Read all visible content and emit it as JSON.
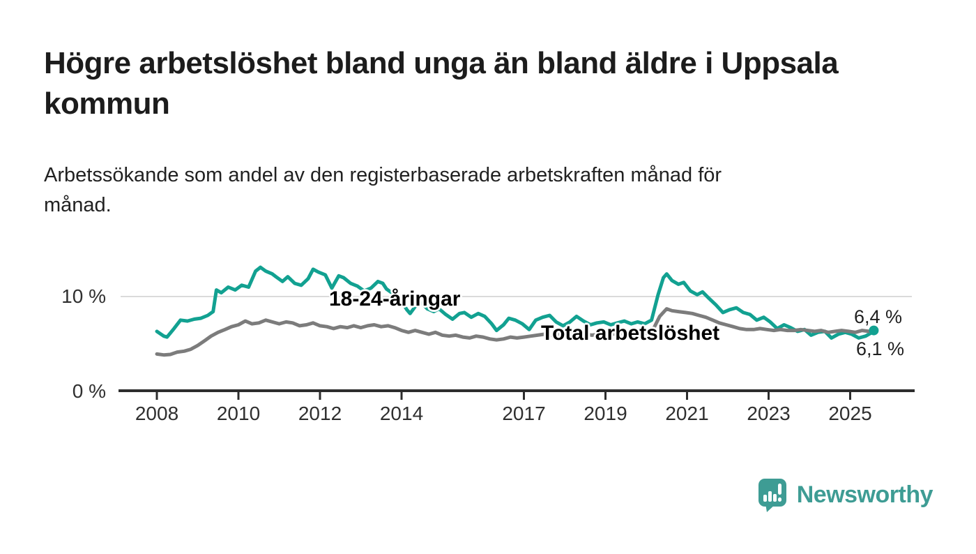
{
  "header": {
    "title_lines": [
      "Högre arbetslöshet bland unga än bland äldre i Uppsala",
      "kommun"
    ],
    "subtitle_lines": [
      "Arbetssökande som andel av den registerbaserade arbetskraften månad för",
      "månad."
    ]
  },
  "footer": {
    "brand": "Newsworthy",
    "brand_color": "#3e9c94"
  },
  "chart_data": {
    "type": "line",
    "title": "Högre arbetslöshet bland unga än bland äldre i Uppsala kommun",
    "subtitle": "Arbetssökande som andel av den registerbaserade arbetskraften månad för månad.",
    "xlabel": "",
    "ylabel": "",
    "x_range": [
      2008,
      2025.7
    ],
    "ylim": [
      0,
      14
    ],
    "grid": "single horizontal gridline at 10 %",
    "axis_color": "#2d2d2d",
    "gridline_color": "#dadada",
    "y_ticks": [
      {
        "value": 10,
        "label": "10 %"
      },
      {
        "value": 0,
        "label": "0 %"
      }
    ],
    "x_ticks": [
      {
        "year": 2008,
        "label": "2008"
      },
      {
        "year": 2010,
        "label": "2010"
      },
      {
        "year": 2012,
        "label": "2012"
      },
      {
        "year": 2014,
        "label": "2014"
      },
      {
        "year": 2017,
        "label": "2017"
      },
      {
        "year": 2019,
        "label": "2019"
      },
      {
        "year": 2021,
        "label": "2021"
      },
      {
        "year": 2023,
        "label": "2023"
      },
      {
        "year": 2025,
        "label": "2025"
      }
    ],
    "series": [
      {
        "name": "18-24-åringar",
        "color": "#12a191",
        "end_label": "6,4 %",
        "end_value": 6.4,
        "end_dot": true,
        "points": [
          [
            2008.0,
            6.3
          ],
          [
            2008.17,
            5.8
          ],
          [
            2008.25,
            5.7
          ],
          [
            2008.42,
            6.6
          ],
          [
            2008.58,
            7.5
          ],
          [
            2008.75,
            7.4
          ],
          [
            2008.92,
            7.6
          ],
          [
            2009.08,
            7.7
          ],
          [
            2009.25,
            8.0
          ],
          [
            2009.38,
            8.4
          ],
          [
            2009.46,
            10.7
          ],
          [
            2009.58,
            10.4
          ],
          [
            2009.75,
            11.0
          ],
          [
            2009.92,
            10.7
          ],
          [
            2010.08,
            11.2
          ],
          [
            2010.25,
            11.0
          ],
          [
            2010.42,
            12.7
          ],
          [
            2010.54,
            13.1
          ],
          [
            2010.67,
            12.7
          ],
          [
            2010.83,
            12.4
          ],
          [
            2010.92,
            12.1
          ],
          [
            2011.08,
            11.6
          ],
          [
            2011.21,
            12.1
          ],
          [
            2011.38,
            11.4
          ],
          [
            2011.54,
            11.2
          ],
          [
            2011.71,
            11.9
          ],
          [
            2011.83,
            12.9
          ],
          [
            2011.96,
            12.6
          ],
          [
            2012.13,
            12.3
          ],
          [
            2012.29,
            10.9
          ],
          [
            2012.46,
            12.2
          ],
          [
            2012.58,
            12.0
          ],
          [
            2012.75,
            11.4
          ],
          [
            2012.92,
            11.1
          ],
          [
            2013.08,
            10.6
          ],
          [
            2013.25,
            10.9
          ],
          [
            2013.42,
            11.6
          ],
          [
            2013.54,
            11.4
          ],
          [
            2013.63,
            10.8
          ],
          [
            2013.79,
            10.3
          ],
          [
            2013.96,
            9.8
          ],
          [
            2014.13,
            8.6
          ],
          [
            2014.21,
            8.2
          ],
          [
            2014.38,
            9.2
          ],
          [
            2014.5,
            9.3
          ],
          [
            2014.63,
            8.7
          ],
          [
            2014.79,
            8.4
          ],
          [
            2014.92,
            8.7
          ],
          [
            2015.08,
            8.1
          ],
          [
            2015.25,
            7.6
          ],
          [
            2015.42,
            8.2
          ],
          [
            2015.54,
            8.3
          ],
          [
            2015.71,
            7.8
          ],
          [
            2015.88,
            8.2
          ],
          [
            2016.04,
            7.9
          ],
          [
            2016.21,
            7.1
          ],
          [
            2016.33,
            6.4
          ],
          [
            2016.5,
            7.0
          ],
          [
            2016.63,
            7.7
          ],
          [
            2016.79,
            7.5
          ],
          [
            2016.96,
            7.1
          ],
          [
            2017.13,
            6.5
          ],
          [
            2017.29,
            7.5
          ],
          [
            2017.46,
            7.8
          ],
          [
            2017.63,
            8.0
          ],
          [
            2017.79,
            7.3
          ],
          [
            2017.96,
            6.9
          ],
          [
            2018.13,
            7.3
          ],
          [
            2018.29,
            7.9
          ],
          [
            2018.46,
            7.4
          ],
          [
            2018.63,
            7.0
          ],
          [
            2018.79,
            7.2
          ],
          [
            2018.96,
            7.3
          ],
          [
            2019.13,
            7.0
          ],
          [
            2019.29,
            7.2
          ],
          [
            2019.46,
            7.4
          ],
          [
            2019.63,
            7.1
          ],
          [
            2019.79,
            7.3
          ],
          [
            2019.96,
            7.1
          ],
          [
            2020.13,
            7.5
          ],
          [
            2020.29,
            10.2
          ],
          [
            2020.42,
            12.0
          ],
          [
            2020.5,
            12.4
          ],
          [
            2020.63,
            11.7
          ],
          [
            2020.79,
            11.3
          ],
          [
            2020.92,
            11.5
          ],
          [
            2021.08,
            10.6
          ],
          [
            2021.25,
            10.2
          ],
          [
            2021.38,
            10.5
          ],
          [
            2021.54,
            9.8
          ],
          [
            2021.71,
            9.1
          ],
          [
            2021.88,
            8.3
          ],
          [
            2022.04,
            8.6
          ],
          [
            2022.21,
            8.8
          ],
          [
            2022.38,
            8.3
          ],
          [
            2022.54,
            8.1
          ],
          [
            2022.71,
            7.5
          ],
          [
            2022.88,
            7.8
          ],
          [
            2023.04,
            7.3
          ],
          [
            2023.21,
            6.6
          ],
          [
            2023.38,
            7.0
          ],
          [
            2023.54,
            6.7
          ],
          [
            2023.71,
            6.3
          ],
          [
            2023.88,
            6.5
          ],
          [
            2024.04,
            5.9
          ],
          [
            2024.21,
            6.2
          ],
          [
            2024.38,
            6.3
          ],
          [
            2024.54,
            5.6
          ],
          [
            2024.71,
            6.0
          ],
          [
            2024.88,
            6.2
          ],
          [
            2025.04,
            6.0
          ],
          [
            2025.21,
            5.6
          ],
          [
            2025.38,
            5.8
          ],
          [
            2025.5,
            6.1
          ],
          [
            2025.58,
            6.4
          ]
        ]
      },
      {
        "name": "Total arbetslöshet",
        "color": "#7c7c7c",
        "end_label": "6,1 %",
        "end_value": 6.1,
        "end_dot": false,
        "points": [
          [
            2008.0,
            3.9
          ],
          [
            2008.17,
            3.8
          ],
          [
            2008.33,
            3.85
          ],
          [
            2008.5,
            4.1
          ],
          [
            2008.67,
            4.2
          ],
          [
            2008.83,
            4.4
          ],
          [
            2009.0,
            4.8
          ],
          [
            2009.17,
            5.3
          ],
          [
            2009.33,
            5.8
          ],
          [
            2009.5,
            6.2
          ],
          [
            2009.67,
            6.5
          ],
          [
            2009.83,
            6.8
          ],
          [
            2010.0,
            7.0
          ],
          [
            2010.17,
            7.4
          ],
          [
            2010.33,
            7.1
          ],
          [
            2010.5,
            7.2
          ],
          [
            2010.67,
            7.5
          ],
          [
            2010.83,
            7.3
          ],
          [
            2011.0,
            7.1
          ],
          [
            2011.17,
            7.3
          ],
          [
            2011.33,
            7.2
          ],
          [
            2011.5,
            6.9
          ],
          [
            2011.67,
            7.0
          ],
          [
            2011.83,
            7.2
          ],
          [
            2012.0,
            6.9
          ],
          [
            2012.17,
            6.8
          ],
          [
            2012.33,
            6.6
          ],
          [
            2012.5,
            6.8
          ],
          [
            2012.67,
            6.7
          ],
          [
            2012.83,
            6.9
          ],
          [
            2013.0,
            6.7
          ],
          [
            2013.17,
            6.9
          ],
          [
            2013.33,
            7.0
          ],
          [
            2013.5,
            6.8
          ],
          [
            2013.67,
            6.9
          ],
          [
            2013.83,
            6.7
          ],
          [
            2014.0,
            6.4
          ],
          [
            2014.17,
            6.2
          ],
          [
            2014.33,
            6.4
          ],
          [
            2014.5,
            6.2
          ],
          [
            2014.67,
            6.0
          ],
          [
            2014.83,
            6.2
          ],
          [
            2015.0,
            5.9
          ],
          [
            2015.17,
            5.8
          ],
          [
            2015.33,
            5.9
          ],
          [
            2015.5,
            5.7
          ],
          [
            2015.67,
            5.6
          ],
          [
            2015.83,
            5.8
          ],
          [
            2016.0,
            5.7
          ],
          [
            2016.17,
            5.5
          ],
          [
            2016.33,
            5.4
          ],
          [
            2016.5,
            5.5
          ],
          [
            2016.67,
            5.7
          ],
          [
            2016.83,
            5.6
          ],
          [
            2017.0,
            5.7
          ],
          [
            2017.17,
            5.8
          ],
          [
            2017.33,
            5.9
          ],
          [
            2017.5,
            6.0
          ],
          [
            2017.67,
            5.9
          ],
          [
            2017.83,
            6.0
          ],
          [
            2018.0,
            5.9
          ],
          [
            2018.17,
            6.0
          ],
          [
            2018.33,
            6.1
          ],
          [
            2018.5,
            6.0
          ],
          [
            2018.67,
            5.9
          ],
          [
            2018.83,
            6.0
          ],
          [
            2019.0,
            5.9
          ],
          [
            2019.17,
            6.0
          ],
          [
            2019.33,
            6.1
          ],
          [
            2019.5,
            6.0
          ],
          [
            2019.67,
            6.1
          ],
          [
            2019.83,
            6.0
          ],
          [
            2020.0,
            6.1
          ],
          [
            2020.17,
            6.5
          ],
          [
            2020.33,
            7.9
          ],
          [
            2020.5,
            8.7
          ],
          [
            2020.63,
            8.5
          ],
          [
            2020.79,
            8.4
          ],
          [
            2020.96,
            8.3
          ],
          [
            2021.13,
            8.2
          ],
          [
            2021.29,
            8.0
          ],
          [
            2021.46,
            7.8
          ],
          [
            2021.63,
            7.5
          ],
          [
            2021.79,
            7.2
          ],
          [
            2021.96,
            7.0
          ],
          [
            2022.13,
            6.8
          ],
          [
            2022.29,
            6.6
          ],
          [
            2022.46,
            6.5
          ],
          [
            2022.63,
            6.5
          ],
          [
            2022.79,
            6.6
          ],
          [
            2022.96,
            6.5
          ],
          [
            2023.13,
            6.4
          ],
          [
            2023.29,
            6.5
          ],
          [
            2023.46,
            6.4
          ],
          [
            2023.63,
            6.4
          ],
          [
            2023.79,
            6.5
          ],
          [
            2023.96,
            6.4
          ],
          [
            2024.13,
            6.3
          ],
          [
            2024.29,
            6.4
          ],
          [
            2024.46,
            6.2
          ],
          [
            2024.63,
            6.3
          ],
          [
            2024.79,
            6.4
          ],
          [
            2024.96,
            6.3
          ],
          [
            2025.13,
            6.2
          ],
          [
            2025.29,
            6.4
          ],
          [
            2025.46,
            6.3
          ],
          [
            2025.58,
            6.1
          ]
        ]
      }
    ],
    "legend_position": "labels drawn on lines"
  }
}
